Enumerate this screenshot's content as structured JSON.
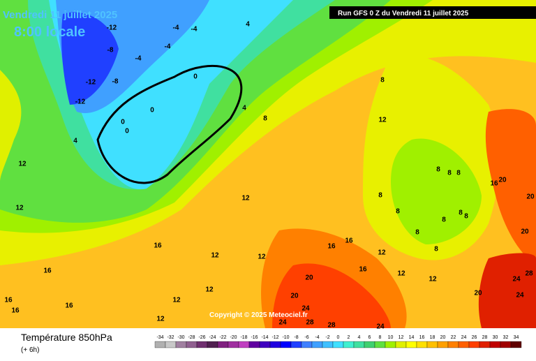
{
  "header": {
    "title": "Vendredi 11 juillet 2025",
    "time": "8:00 locale",
    "run": "Run GFS 0 Z du Vendredi 11 juillet 2025"
  },
  "footer": {
    "variable": "Température 850hPa",
    "step": "(+ 6h)",
    "copyright": "Copyright © 2025 Meteociel.fr"
  },
  "legend": {
    "ticks": [
      -34,
      -32,
      -30,
      -28,
      -26,
      -24,
      -22,
      -20,
      -18,
      -16,
      -14,
      -12,
      -10,
      -8,
      -6,
      -4,
      -2,
      0,
      2,
      4,
      6,
      8,
      10,
      12,
      14,
      16,
      18,
      20,
      22,
      24,
      26,
      28,
      30,
      32,
      34
    ],
    "colors": [
      "#b0b0b0",
      "#c8c8c8",
      "#a080a0",
      "#906090",
      "#703070",
      "#502050",
      "#802080",
      "#a030a0",
      "#c040c0",
      "#6000a0",
      "#4000c0",
      "#2000e0",
      "#0000ff",
      "#2040ff",
      "#4080ff",
      "#40a0ff",
      "#40c0ff",
      "#40e0ff",
      "#40f0d0",
      "#40e0a0",
      "#40d070",
      "#60e040",
      "#a0f000",
      "#e0f000",
      "#ffff00",
      "#ffe000",
      "#ffc000",
      "#ffa000",
      "#ff8000",
      "#ff6000",
      "#ff4000",
      "#e02000",
      "#c00000",
      "#a00000",
      "#600000"
    ]
  },
  "map_labels": [
    -12,
    -4,
    -4,
    4,
    -8,
    -4,
    -4,
    -12,
    -8,
    -12,
    0,
    0,
    0,
    0,
    4,
    4,
    8,
    8,
    12,
    12,
    12,
    12,
    16,
    12,
    12,
    16,
    16,
    16,
    16,
    12,
    12,
    12,
    16,
    16,
    16,
    12,
    12,
    12,
    20,
    20,
    24,
    24,
    28,
    28,
    24,
    20,
    24,
    24,
    28,
    20,
    16,
    20,
    20,
    8,
    8,
    8,
    8,
    8,
    8,
    8,
    8,
    8,
    8
  ]
}
